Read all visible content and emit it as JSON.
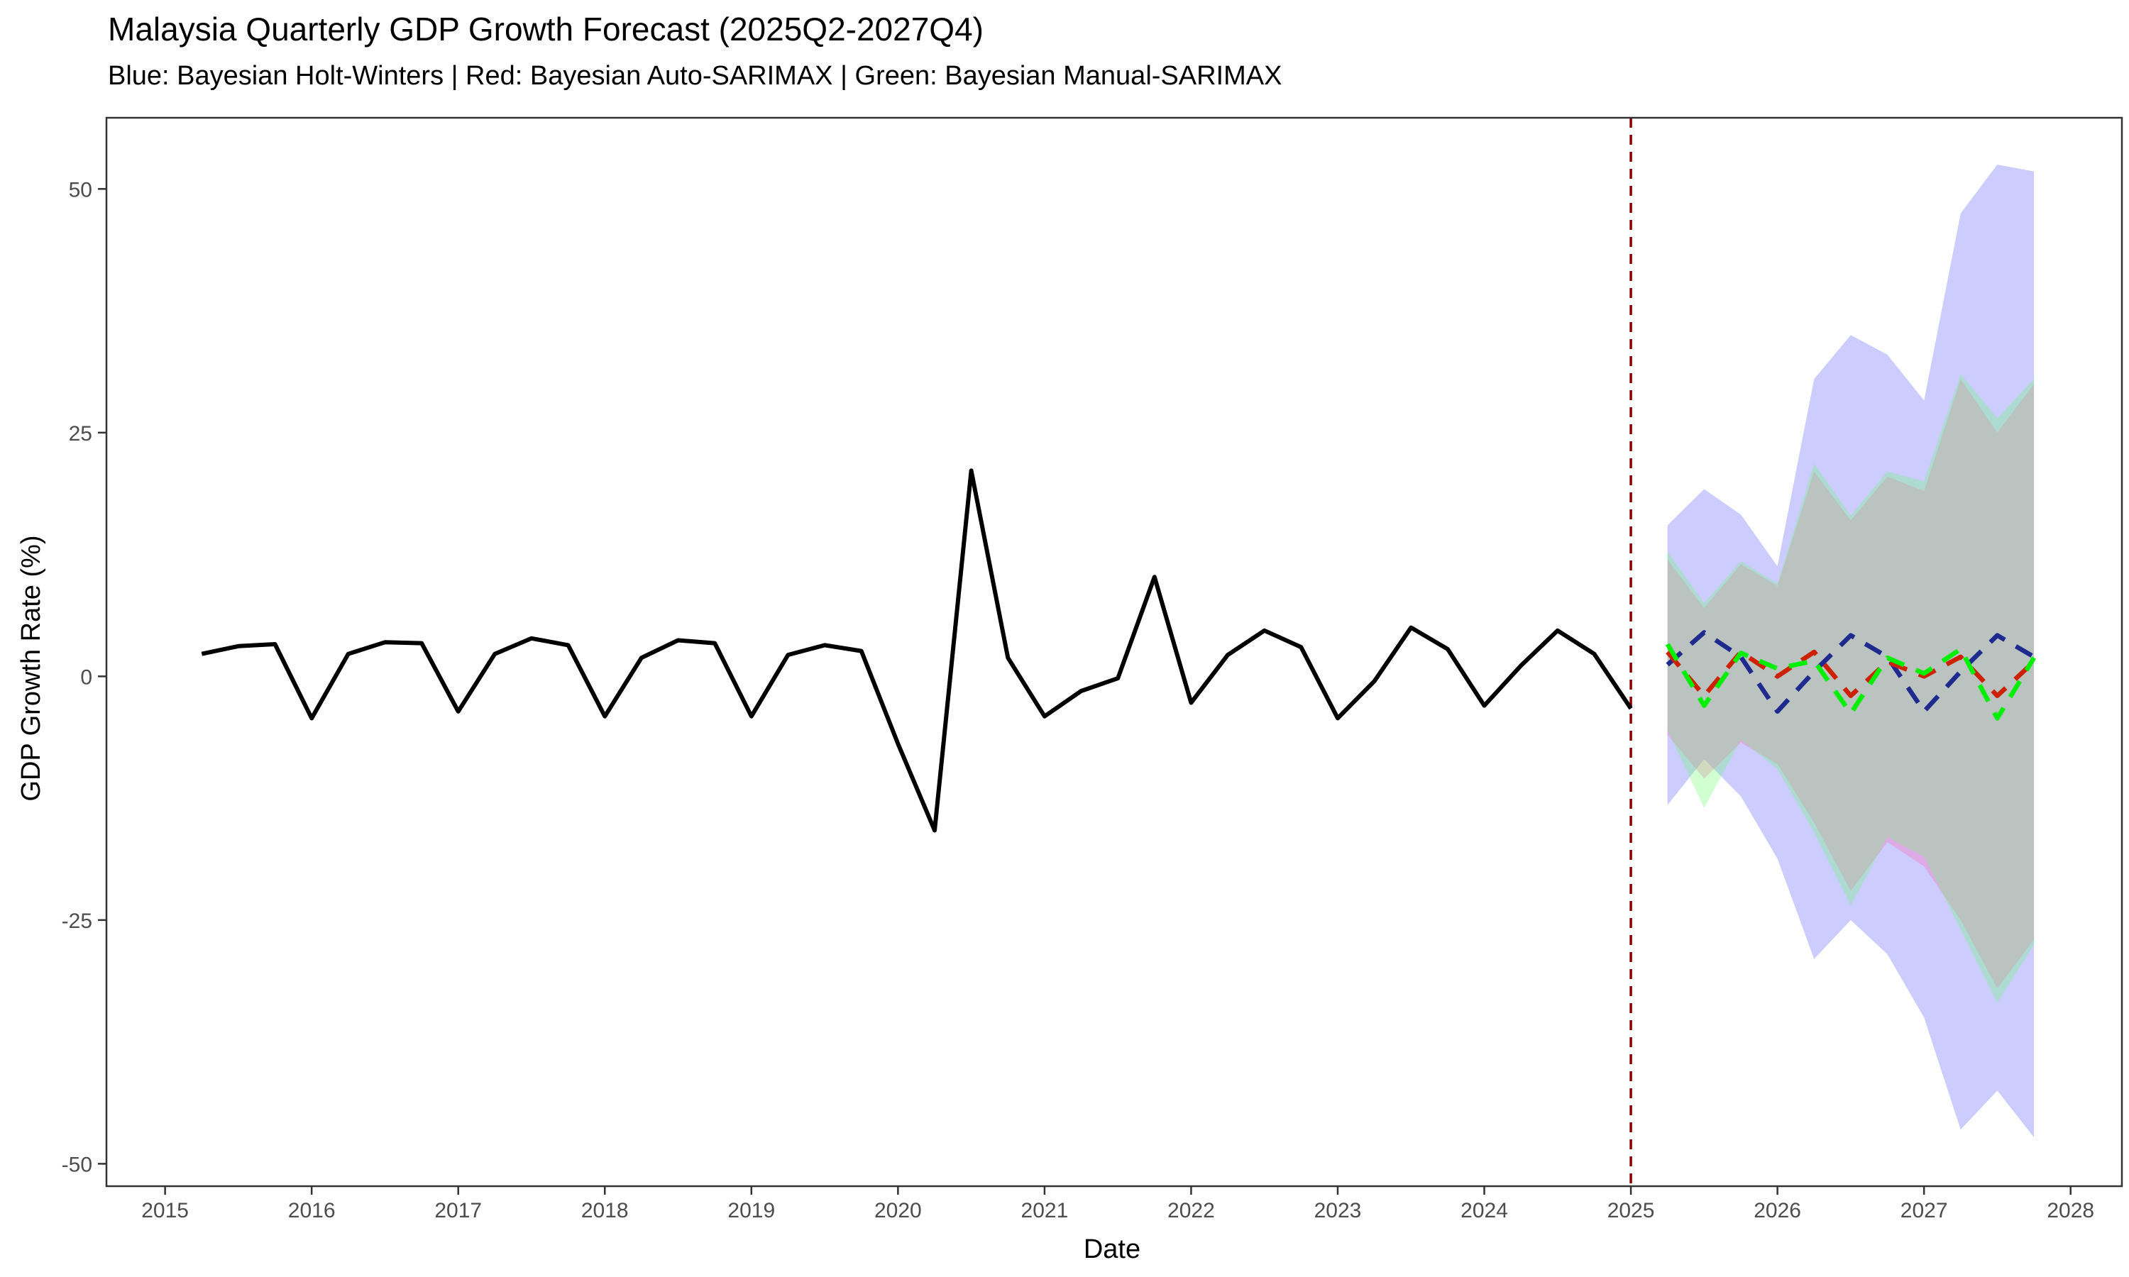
{
  "chart_data": {
    "type": "line",
    "title": "Malaysia Quarterly GDP Growth Forecast (2025Q2-2027Q4)",
    "subtitle": "Blue: Bayesian Holt-Winters | Red: Bayesian Auto-SARIMAX | Green: Bayesian Manual-SARIMAX",
    "xlabel": "Date",
    "ylabel": "GDP Growth Rate (%)",
    "xlim": [
      2014.6,
      2028.35
    ],
    "ylim": [
      -52.3,
      57.3
    ],
    "x_ticks": [
      2015,
      2016,
      2017,
      2018,
      2019,
      2020,
      2021,
      2022,
      2023,
      2024,
      2025,
      2026,
      2027,
      2028
    ],
    "x_tick_labels": [
      "2015",
      "2016",
      "2017",
      "2018",
      "2019",
      "2020",
      "2021",
      "2022",
      "2023",
      "2024",
      "2025",
      "2026",
      "2027",
      "2028"
    ],
    "y_ticks": [
      -50,
      -25,
      0,
      25,
      50
    ],
    "y_tick_labels": [
      "-50",
      "-25",
      "0",
      "25",
      "50"
    ],
    "grid": false,
    "forecast_start_marker": {
      "x": 2025.0,
      "color": "#8b0000",
      "style": "dashed"
    },
    "historical": {
      "color": "#000000",
      "x": [
        2015.25,
        2015.5,
        2015.75,
        2016.0,
        2016.25,
        2016.5,
        2016.75,
        2017.0,
        2017.25,
        2017.5,
        2017.75,
        2018.0,
        2018.25,
        2018.5,
        2018.75,
        2019.0,
        2019.25,
        2019.5,
        2019.75,
        2020.0,
        2020.25,
        2020.5,
        2020.75,
        2021.0,
        2021.25,
        2021.5,
        2021.75,
        2022.0,
        2022.25,
        2022.5,
        2022.75,
        2023.0,
        2023.25,
        2023.5,
        2023.75,
        2024.0,
        2024.25,
        2024.5,
        2024.75,
        2025.0
      ],
      "values": [
        2.3,
        3.1,
        3.3,
        -4.3,
        2.3,
        3.5,
        3.4,
        -3.6,
        2.3,
        3.9,
        3.2,
        -4.1,
        1.9,
        3.7,
        3.4,
        -4.1,
        2.2,
        3.2,
        2.6,
        -6.9,
        -15.8,
        21.1,
        1.9,
        -4.1,
        -1.5,
        -0.2,
        10.2,
        -2.7,
        2.2,
        4.7,
        3.0,
        -4.3,
        -0.5,
        5.0,
        2.8,
        -3.0,
        1.1,
        4.7,
        2.3,
        -3.3
      ]
    },
    "forecast_x": [
      2025.25,
      2025.5,
      2025.75,
      2026.0,
      2026.25,
      2026.5,
      2026.75,
      2027.0,
      2027.25,
      2027.5,
      2027.75
    ],
    "series": [
      {
        "name": "Bayesian Holt-Winters",
        "line_color": "#1f2a8f",
        "band_color": "#0000ff",
        "band_opacity": 0.2,
        "values": [
          1.2,
          4.5,
          2.0,
          -3.6,
          0.5,
          4.2,
          2.0,
          -3.6,
          0.5,
          4.2,
          2.0
        ],
        "lower": [
          -13.2,
          -8.5,
          -12.3,
          -18.7,
          -29.0,
          -25.0,
          -28.5,
          -35.0,
          -46.5,
          -42.5,
          -47.3
        ],
        "upper": [
          15.5,
          19.2,
          16.6,
          11.3,
          30.5,
          35.0,
          33.0,
          28.3,
          47.5,
          52.5,
          51.8
        ]
      },
      {
        "name": "Bayesian Auto-SARIMAX",
        "line_color": "#cc2200",
        "band_color": "#ff69b4",
        "band_opacity": 0.35,
        "values": [
          2.5,
          -2.0,
          2.5,
          0.0,
          2.5,
          -2.0,
          1.5,
          0.0,
          2.0,
          -2.0,
          1.5
        ],
        "lower": [
          -6.0,
          -10.5,
          -6.8,
          -9.0,
          -15.0,
          -22.0,
          -17.0,
          -19.5,
          -25.0,
          -32.0,
          -27.0
        ],
        "upper": [
          12.0,
          7.0,
          11.5,
          9.3,
          21.0,
          16.0,
          20.5,
          19.0,
          30.5,
          25.0,
          30.0
        ]
      },
      {
        "name": "Bayesian Manual-SARIMAX",
        "line_color": "#00ee00",
        "band_color": "#66ff66",
        "band_opacity": 0.3,
        "values": [
          3.3,
          -3.0,
          2.4,
          0.8,
          1.6,
          -3.8,
          1.9,
          0.3,
          2.8,
          -4.3,
          1.9
        ],
        "lower": [
          -5.5,
          -13.5,
          -6.5,
          -9.5,
          -16.0,
          -23.5,
          -16.5,
          -18.5,
          -26.0,
          -33.5,
          -27.5
        ],
        "upper": [
          12.8,
          7.5,
          11.8,
          9.5,
          21.8,
          16.5,
          21.0,
          20.0,
          31.0,
          26.5,
          30.5
        ]
      }
    ]
  }
}
